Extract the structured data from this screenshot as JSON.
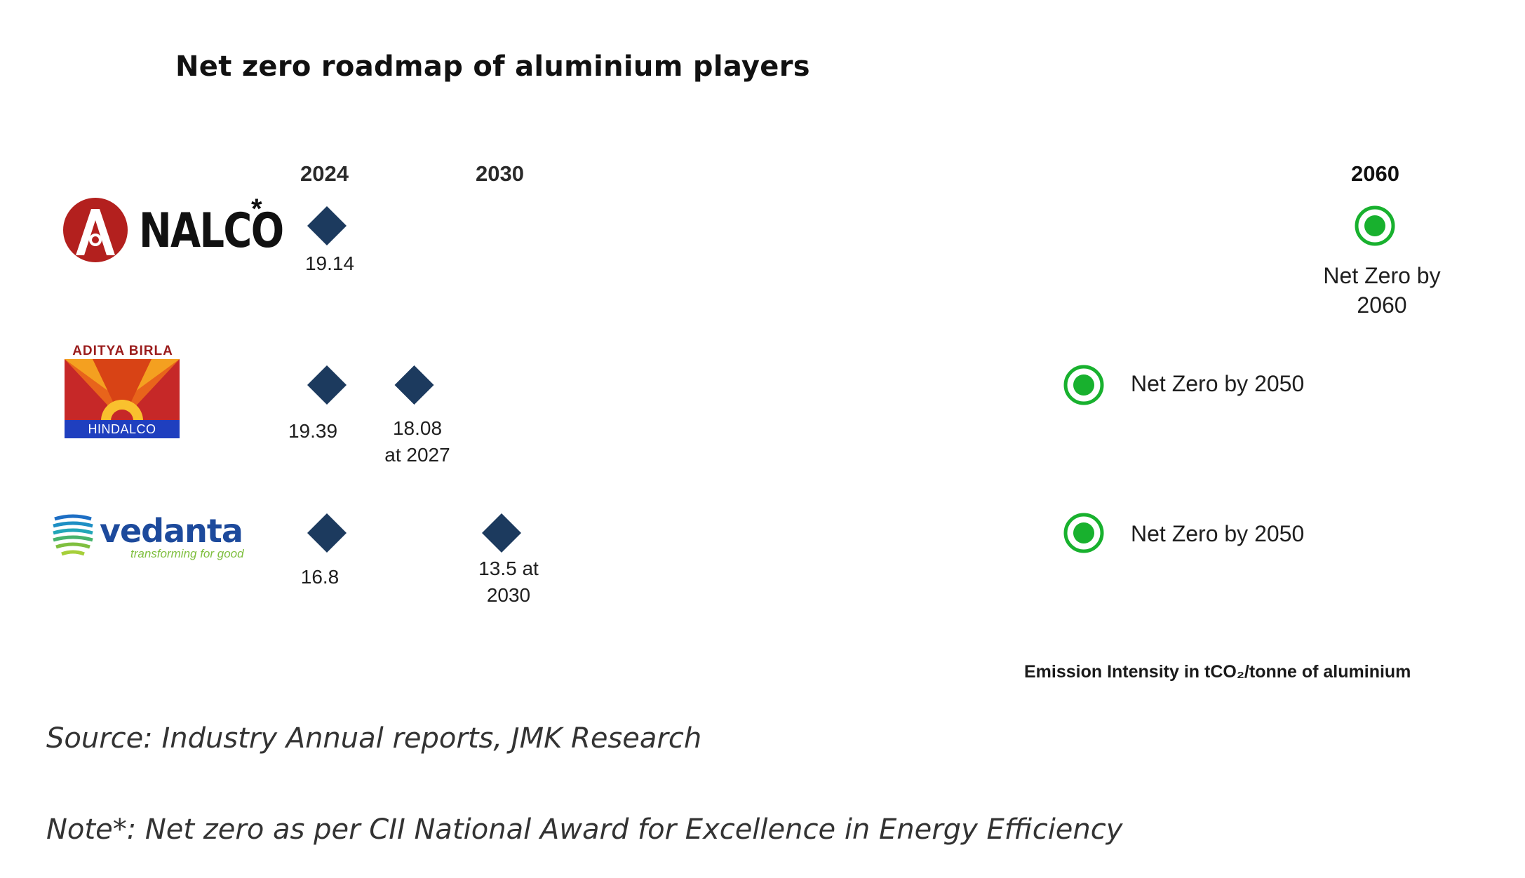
{
  "title": "Net zero roadmap of aluminium players",
  "companies": [
    {
      "name": "NALCO",
      "star": "*"
    },
    {
      "name": "ADITYA BIRLA",
      "sub": "HINDALCO"
    },
    {
      "name": "vedanta",
      "tagline": "transforming for good"
    }
  ],
  "chart_data": {
    "type": "timeline",
    "years": [
      "2024",
      "2030",
      "2060"
    ],
    "unit_label": "Emission Intensity in tCO₂/tonne of aluminium",
    "series": [
      {
        "company": "NALCO",
        "start_year": 2024,
        "start_value": 19.14,
        "start_label": "19.14",
        "milestones": [],
        "net_zero_year": 2060,
        "net_zero_label": "Net Zero by 2060"
      },
      {
        "company": "HINDALCO",
        "start_year": 2024,
        "start_value": 19.39,
        "start_label": "19.39",
        "milestones": [
          {
            "year": 2027,
            "value": 18.08,
            "label_line1": "18.08",
            "label_line2": "at 2027"
          }
        ],
        "net_zero_year": 2050,
        "net_zero_label": "Net Zero by 2050"
      },
      {
        "company": "Vedanta",
        "start_year": 2024,
        "start_value": 16.8,
        "start_label": "16.8",
        "milestones": [
          {
            "year": 2030,
            "value": 13.5,
            "label_line1": "13.5 at",
            "label_line2": "2030"
          }
        ],
        "net_zero_year": 2050,
        "net_zero_label": "Net Zero by 2050"
      }
    ]
  },
  "nalco_nz_line1": "Net Zero by",
  "nalco_nz_line2": "2060",
  "source": "Source: Industry Annual reports, JMK Research",
  "note": "Note*: Net zero as per CII National Award for Excellence in Energy Efficiency",
  "colors": {
    "diamond": "#1c3a5e",
    "green": "#18b12e",
    "grey": "#c4c4c4"
  }
}
